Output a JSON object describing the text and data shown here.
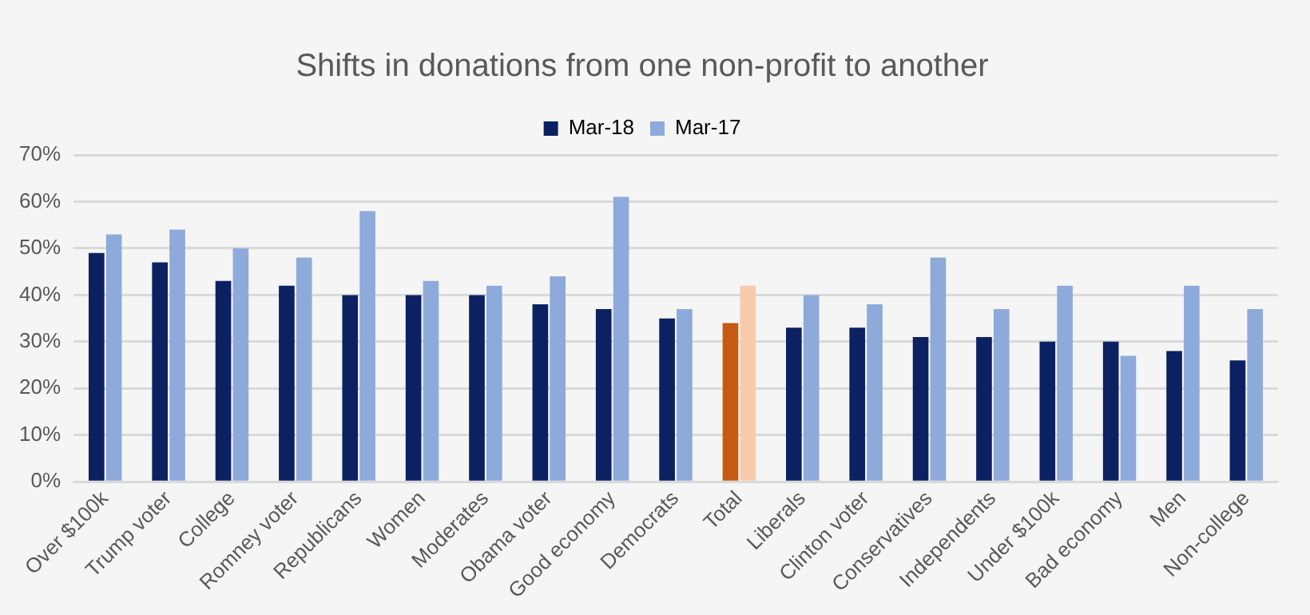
{
  "chart_data": {
    "type": "bar",
    "title": "Shifts in donations from one non-profit to another",
    "categories": [
      "Over $100k",
      "Trump voter",
      "College",
      "Romney voter",
      "Republicans",
      "Women",
      "Moderates",
      "Obama voter",
      "Good economy",
      "Democrats",
      "Total",
      "Liberals",
      "Clinton voter",
      "Conservatives",
      "Independents",
      "Under $100k",
      "Bad economy",
      "Men",
      "Non-college"
    ],
    "series": [
      {
        "name": "Mar-18",
        "color": "#0b2161",
        "colors": [
          "#0b2161",
          "#0b2161",
          "#0b2161",
          "#0b2161",
          "#0b2161",
          "#0b2161",
          "#0b2161",
          "#0b2161",
          "#0b2161",
          "#0b2161",
          "#c55a11",
          "#0b2161",
          "#0b2161",
          "#0b2161",
          "#0b2161",
          "#0b2161",
          "#0b2161",
          "#0b2161",
          "#0b2161"
        ],
        "values": [
          49,
          47,
          43,
          42,
          40,
          40,
          40,
          38,
          37,
          35,
          34,
          33,
          33,
          31,
          31,
          30,
          30,
          28,
          26
        ]
      },
      {
        "name": "Mar-17",
        "color": "#8eaadb",
        "colors": [
          "#8eaadb",
          "#8eaadb",
          "#8eaadb",
          "#8eaadb",
          "#8eaadb",
          "#8eaadb",
          "#8eaadb",
          "#8eaadb",
          "#8eaadb",
          "#8eaadb",
          "#f8cbad",
          "#8eaadb",
          "#8eaadb",
          "#8eaadb",
          "#8eaadb",
          "#8eaadb",
          "#8eaadb",
          "#8eaadb",
          "#8eaadb"
        ],
        "values": [
          53,
          54,
          50,
          48,
          58,
          43,
          42,
          44,
          61,
          37,
          42,
          40,
          38,
          48,
          37,
          42,
          27,
          42,
          37
        ]
      }
    ],
    "ylim": [
      0,
      70
    ],
    "yticks": [
      {
        "value": 0,
        "label": "0%"
      },
      {
        "value": 10,
        "label": "10%"
      },
      {
        "value": 20,
        "label": "20%"
      },
      {
        "value": 30,
        "label": "30%"
      },
      {
        "value": 40,
        "label": "40%"
      },
      {
        "value": 50,
        "label": "50%"
      },
      {
        "value": 60,
        "label": "60%"
      },
      {
        "value": 70,
        "label": "70%"
      }
    ],
    "grid": "y",
    "legend": "top"
  }
}
